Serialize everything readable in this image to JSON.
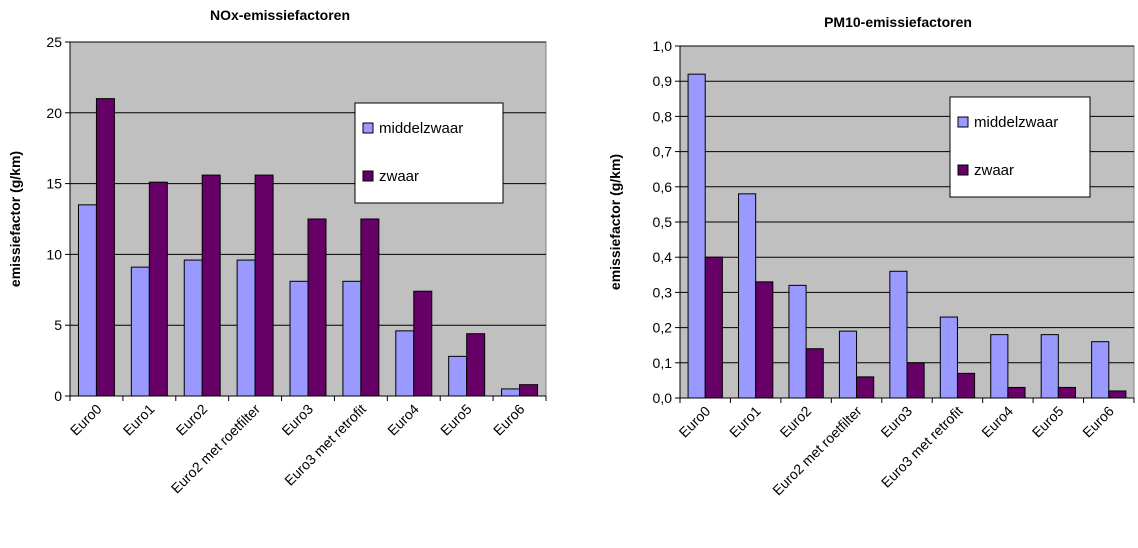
{
  "chart_data": [
    {
      "type": "bar",
      "title": "NOx-emissiefactoren",
      "xlabel": "",
      "ylabel": "emissiefactor (g/km)",
      "categories": [
        "Euro0",
        "Euro1",
        "Euro2",
        "Euro2 met roetfilter",
        "Euro3",
        "Euro3 met retrofit",
        "Euro4",
        "Euro5",
        "Euro6"
      ],
      "series": [
        {
          "name": "middelzwaar",
          "color": "#9999ff",
          "values": [
            13.5,
            9.1,
            9.6,
            9.6,
            8.1,
            8.1,
            4.6,
            2.8,
            0.5
          ]
        },
        {
          "name": "zwaar",
          "color": "#660066",
          "values": [
            21.0,
            15.1,
            15.6,
            15.6,
            12.5,
            12.5,
            7.4,
            4.4,
            0.8
          ]
        }
      ],
      "ylim": [
        0,
        25
      ],
      "yticks": [
        "0",
        "5",
        "10",
        "15",
        "20",
        "25"
      ],
      "grid": true,
      "plot_background": "#c0c0c0",
      "legend_position": "top-right"
    },
    {
      "type": "bar",
      "title": "PM10-emissiefactoren",
      "xlabel": "",
      "ylabel": "emissiefactor (g/km)",
      "categories": [
        "Euro0",
        "Euro1",
        "Euro2",
        "Euro2 met roetfilter",
        "Euro3",
        "Euro3 met retrofit",
        "Euro4",
        "Euro5",
        "Euro6"
      ],
      "series": [
        {
          "name": "middelzwaar",
          "color": "#9999ff",
          "values": [
            0.92,
            0.58,
            0.32,
            0.19,
            0.36,
            0.23,
            0.18,
            0.18,
            0.16
          ]
        },
        {
          "name": "zwaar",
          "color": "#660066",
          "values": [
            0.4,
            0.33,
            0.14,
            0.06,
            0.1,
            0.07,
            0.03,
            0.03,
            0.02
          ]
        }
      ],
      "ylim": [
        0,
        1.0
      ],
      "yticks": [
        "0,0",
        "0,1",
        "0,2",
        "0,3",
        "0,4",
        "0,5",
        "0,6",
        "0,7",
        "0,8",
        "0,9",
        "1,0"
      ],
      "grid": true,
      "plot_background": "#c0c0c0",
      "legend_position": "top-right"
    }
  ]
}
